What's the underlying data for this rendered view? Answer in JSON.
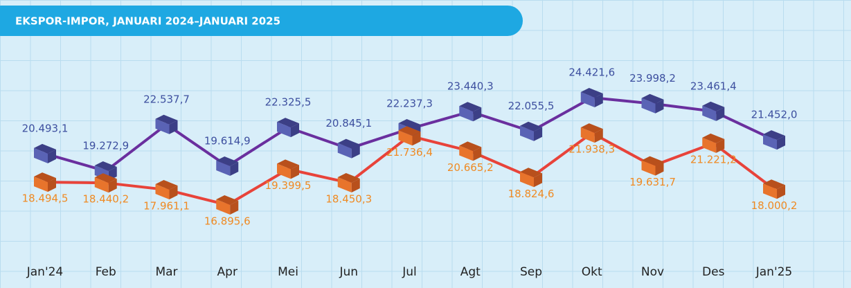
{
  "chart_data": {
    "type": "line",
    "title": "EKSPOR-IMPOR, JANUARI 2024–JANUARI 2025",
    "categories": [
      "Jan'24",
      "Feb",
      "Mar",
      "Apr",
      "Mei",
      "Jun",
      "Jul",
      "Agt",
      "Sep",
      "Okt",
      "Nov",
      "Des",
      "Jan'25"
    ],
    "series": [
      {
        "color": "#6a2f9e",
        "values": [
          20493.1,
          19272.9,
          22537.7,
          19614.9,
          22325.5,
          20845.1,
          22237.3,
          23440.3,
          22055.5,
          24421.6,
          23998.2,
          23461.4,
          21452.0
        ],
        "value_labels": [
          "20.493,1",
          "19.272,9",
          "22.537,7",
          "19.614,9",
          "22.325,5",
          "20.845,1",
          "22.237,3",
          "23.440,3",
          "22.055,5",
          "24.421,6",
          "23.998,2",
          "23.461,4",
          "21.452,0"
        ]
      },
      {
        "color": "#e8433a",
        "values": [
          18494.5,
          18440.2,
          17961.1,
          16895.6,
          19399.5,
          18450.3,
          21736.4,
          20665.2,
          18824.6,
          21938.3,
          19631.7,
          21221.2,
          18000.2
        ],
        "value_labels": [
          "18.494,5",
          "18.440,2",
          "17.961,1",
          "16.895,6",
          "19.399,5",
          "18.450,3",
          "21.736,4",
          "20.665,2",
          "18.824,6",
          "21.938,3",
          "19.631,7",
          "21.221,2",
          "18.000,2"
        ]
      }
    ]
  }
}
